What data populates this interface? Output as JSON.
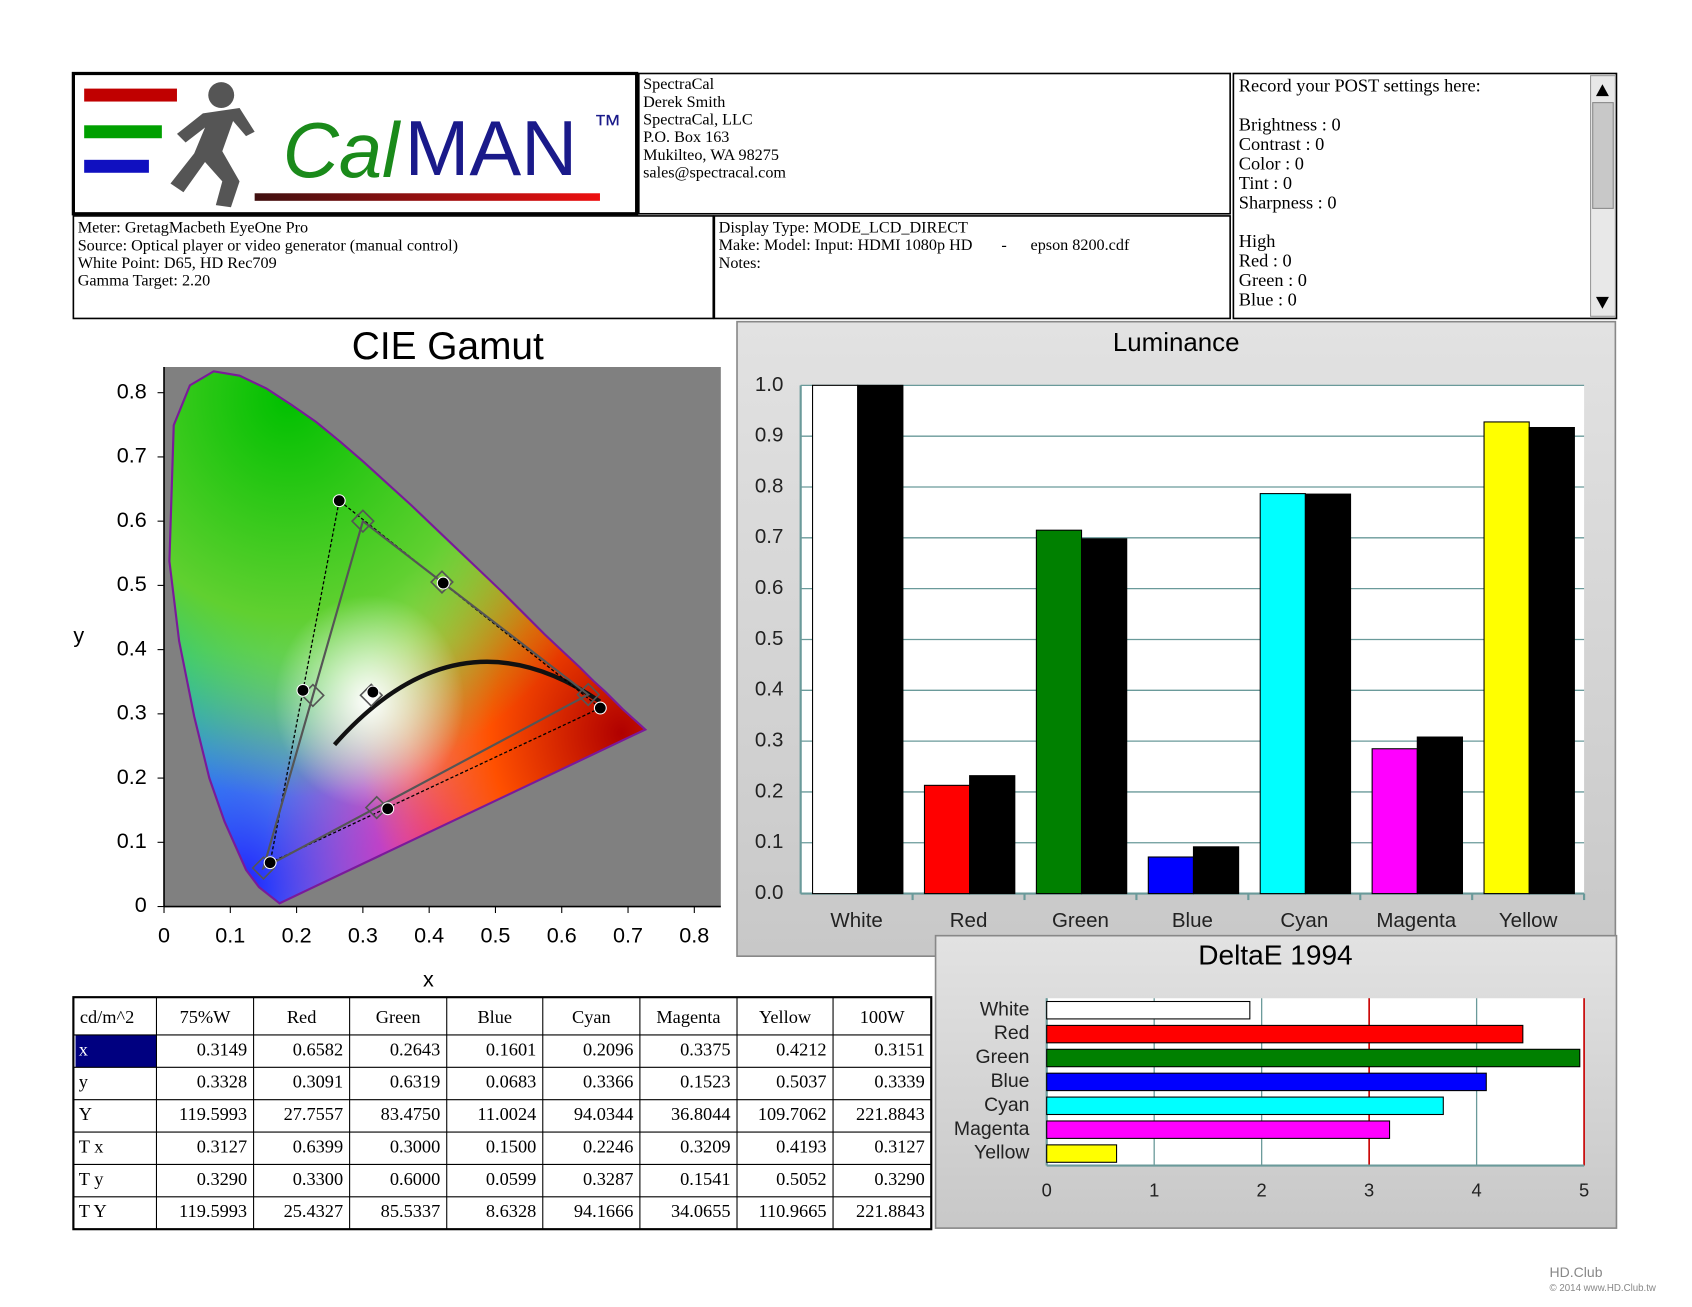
{
  "header": {
    "logo": {
      "cal": "Cal",
      "man": "MAN",
      "tm": "™"
    },
    "contact": [
      "SpectraCal",
      "Derek Smith",
      "SpectraCal, LLC",
      "P.O. Box 163",
      "Mukilteo, WA 98275",
      "sales@spectracal.com"
    ],
    "meter": [
      "Meter: GretagMacbeth EyeOne Pro",
      "Source: Optical player or video generator (manual control)",
      "White Point: D65, HD Rec709",
      "Gamma Target: 2.20"
    ],
    "display": [
      "Display Type: MODE_LCD_DIRECT",
      "Make: Model: Input: HDMI 1080p HD",
      "-",
      "epson 8200.cdf",
      "Notes:"
    ],
    "settings": [
      "Record your POST settings here:",
      "Brightness : 0",
      "Contrast : 0",
      "Color : 0",
      "Tint : 0",
      "Sharpness : 0",
      "High",
      "Red : 0",
      "Green : 0",
      "Blue : 0"
    ]
  },
  "chart_data": [
    {
      "type": "scatter",
      "title": "CIE Gamut",
      "x_label": "x",
      "y_label": "y",
      "xlim": [
        0,
        0.84
      ],
      "ylim": [
        0,
        0.84
      ],
      "xticks": [
        0,
        0.1,
        0.2,
        0.3,
        0.4,
        0.5,
        0.6,
        0.7,
        0.8
      ],
      "yticks": [
        0,
        0.1,
        0.2,
        0.3,
        0.4,
        0.5,
        0.6,
        0.7,
        0.8
      ],
      "series": [
        {
          "color": "#000000",
          "marker": "circle",
          "line": "dashed",
          "x": [
            0.3149,
            0.6582,
            0.2643,
            0.1601,
            0.2096,
            0.3375,
            0.4212,
            0.3151
          ],
          "y": [
            0.3328,
            0.3091,
            0.6319,
            0.0683,
            0.3366,
            0.1523,
            0.5037,
            0.3339
          ]
        },
        {
          "color": "#555555",
          "marker": "diamond",
          "line": "solid",
          "x": [
            0.3127,
            0.64,
            0.3,
            0.15,
            0.2246,
            0.3209,
            0.4193
          ],
          "y": [
            0.329,
            0.33,
            0.6,
            0.06,
            0.3287,
            0.1541,
            0.5052
          ]
        }
      ]
    },
    {
      "type": "bar",
      "title": "Luminance",
      "categories": [
        "White",
        "Red",
        "Green",
        "Blue",
        "Cyan",
        "Magenta",
        "Yellow"
      ],
      "series": [
        {
          "colors": [
            "#ffffff",
            "#ff0000",
            "#008000",
            "#0000ff",
            "#00ffff",
            "#ff00ff",
            "#ffff00"
          ],
          "values": [
            1.0,
            0.213,
            0.715,
            0.072,
            0.787,
            0.285,
            0.928
          ]
        },
        {
          "color": "#000000",
          "values": [
            1.0,
            0.232,
            0.698,
            0.092,
            0.786,
            0.308,
            0.917
          ]
        }
      ],
      "ylim": [
        0,
        1
      ],
      "yticks": [
        {
          "value": 0,
          "label": "0.0"
        },
        0.1,
        0.2,
        0.3,
        0.4,
        0.5,
        0.6,
        0.7,
        0.8,
        0.9,
        {
          "value": 1,
          "label": "1.0"
        }
      ],
      "grid": true
    },
    {
      "type": "hbar",
      "title": "DeltaE 1994",
      "categories": [
        "White",
        "Red",
        "Green",
        "Blue",
        "Cyan",
        "Magenta",
        "Yellow"
      ],
      "colors": [
        "#ffffff",
        "#ff0000",
        "#008000",
        "#0000ff",
        "#00ffff",
        "#ff00ff",
        "#ffff00"
      ],
      "values": [
        1.89,
        4.43,
        4.96,
        4.09,
        3.69,
        3.19,
        0.65
      ],
      "xlim": [
        0,
        5
      ],
      "xticks": [
        0,
        1,
        2,
        3,
        4,
        5
      ],
      "grid": true,
      "thresholds": [
        3,
        5
      ],
      "threshold_color": "#cc0000"
    }
  ],
  "table": {
    "header": [
      "cd/m^2",
      "75%W",
      "Red",
      "Green",
      "Blue",
      "Cyan",
      "Magenta",
      "Yellow",
      "100W"
    ],
    "rows": [
      [
        "x",
        "0.3149",
        "0.6582",
        "0.2643",
        "0.1601",
        "0.2096",
        "0.3375",
        "0.4212",
        "0.3151"
      ],
      [
        "y",
        "0.3328",
        "0.3091",
        "0.6319",
        "0.0683",
        "0.3366",
        "0.1523",
        "0.5037",
        "0.3339"
      ],
      [
        "Y",
        "119.5993",
        "27.7557",
        "83.4750",
        "11.0024",
        "94.0344",
        "36.8044",
        "109.7062",
        "221.8843"
      ],
      [
        "T x",
        "0.3127",
        "0.6399",
        "0.3000",
        "0.1500",
        "0.2246",
        "0.3209",
        "0.4193",
        "0.3127"
      ],
      [
        "T y",
        "0.3290",
        "0.3300",
        "0.6000",
        "0.0599",
        "0.3287",
        "0.1541",
        "0.5052",
        "0.3290"
      ],
      [
        "T Y",
        "119.5993",
        "25.4327",
        "85.5337",
        "8.6328",
        "94.1666",
        "34.0655",
        "110.9665",
        "221.8843"
      ]
    ]
  },
  "watermark": [
    "HD.Club",
    "© 2014 www.HD.Club.tw"
  ]
}
